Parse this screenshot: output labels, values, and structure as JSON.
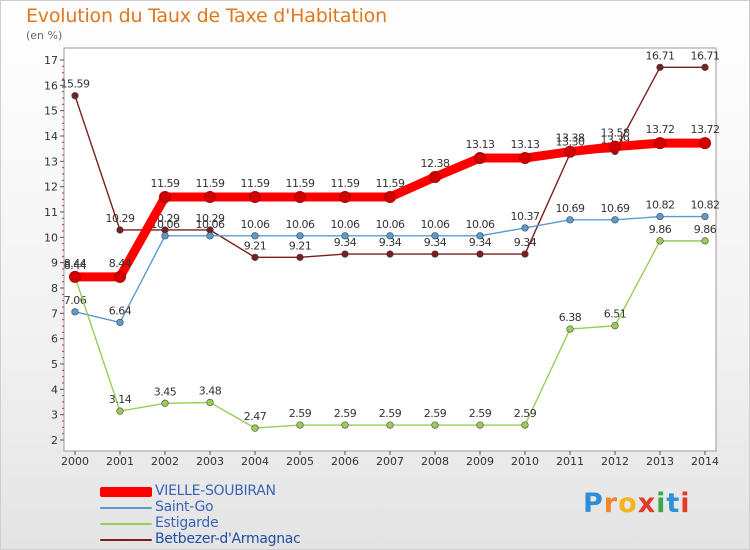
{
  "title": "Evolution du Taux de Taxe d'Habitation",
  "unit_label": "(en %)",
  "logo": {
    "text": "Proxiti",
    "letters": [
      "P",
      "r",
      "o",
      "x",
      "i",
      "t",
      "i"
    ],
    "colors": [
      "#2f8fd6",
      "#f0842a",
      "#f3b41c",
      "#e23a2b",
      "#3aa84a",
      "#2f8fd6",
      "#e23a2b"
    ]
  },
  "chart_data": {
    "type": "line",
    "x": [
      "2000",
      "2001",
      "2002",
      "2003",
      "2004",
      "2005",
      "2006",
      "2007",
      "2008",
      "2009",
      "2010",
      "2011",
      "2012",
      "2013",
      "2014"
    ],
    "ylim": [
      2,
      17
    ],
    "yticks": [
      "2",
      "3",
      "4",
      "5",
      "6",
      "7",
      "8",
      "9",
      "10",
      "11",
      "12",
      "13",
      "14",
      "15",
      "16",
      "17"
    ],
    "grid": false,
    "legend_position": "bottom-left",
    "series": [
      {
        "name": "VIELLE-SOUBIRAN",
        "color": "#ff0000",
        "values": [
          8.44,
          8.44,
          11.59,
          11.59,
          11.59,
          11.59,
          11.59,
          11.59,
          12.38,
          13.13,
          13.13,
          13.38,
          13.58,
          13.72,
          13.72
        ],
        "labels": [
          "8.44",
          "8.44",
          "11.59",
          "11.59",
          "11.59",
          "11.59",
          "11.59",
          "11.59",
          "12.38",
          "13.13",
          "13.13",
          "13.38",
          "13.58",
          "13.72",
          "13.72"
        ]
      },
      {
        "name": "Saint-Go",
        "color": "#5b9bd0",
        "values": [
          7.06,
          6.64,
          10.06,
          10.06,
          10.06,
          10.06,
          10.06,
          10.06,
          10.06,
          10.06,
          10.37,
          10.69,
          10.69,
          10.82,
          10.82
        ],
        "labels": [
          "7.06",
          "6.64",
          "10.06",
          "10.06",
          "10.06",
          "10.06",
          "10.06",
          "10.06",
          "10.06",
          "10.06",
          "10.37",
          "10.69",
          "10.69",
          "10.82",
          "10.82"
        ]
      },
      {
        "name": "Estigarde",
        "color": "#9acd54",
        "values": [
          8.44,
          3.14,
          3.45,
          3.48,
          2.47,
          2.59,
          2.59,
          2.59,
          2.59,
          2.59,
          2.59,
          6.38,
          6.51,
          9.86,
          9.86
        ],
        "labels": [
          "8.44",
          "3.14",
          "3.45",
          "3.48",
          "2.47",
          "2.59",
          "2.59",
          "2.59",
          "2.59",
          "2.59",
          "2.59",
          "6.38",
          "6.51",
          "9.86",
          "9.86"
        ]
      },
      {
        "name": "Betbezer-d'Armagnac",
        "color": "#7a1f1f",
        "values": [
          15.59,
          10.29,
          10.29,
          10.29,
          9.21,
          9.21,
          9.34,
          9.34,
          9.34,
          9.34,
          9.34,
          13.3,
          13.39,
          16.71,
          16.71
        ],
        "labels": [
          "15.59",
          "10.29",
          "10.29",
          "10.29",
          "9.21",
          "9.21",
          "9.34",
          "9.34",
          "9.34",
          "9.34",
          "9.34",
          "13.30",
          "13.39",
          "16.71",
          "16.71"
        ]
      }
    ]
  }
}
